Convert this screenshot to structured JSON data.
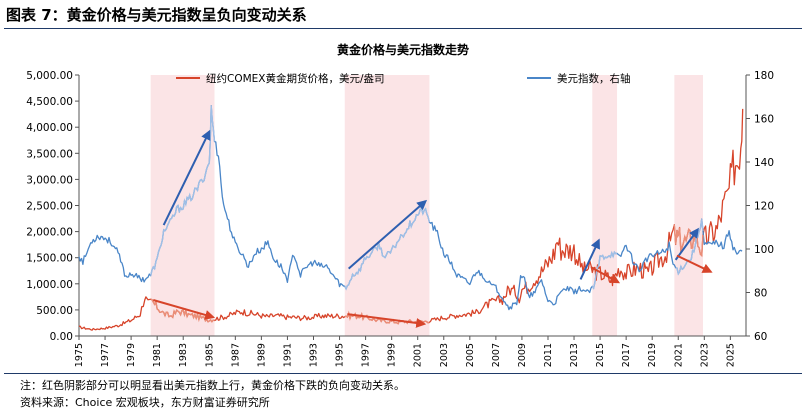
{
  "figure": {
    "title": "图表 7：黄金价格与美元指数呈负向变动关系",
    "note": "注：红色阴影部分可以明显看出美元指数上行，黄金价格下跌的负向变动关系。",
    "source": "资料来源：Choice 宏观板块，东方财富证券研究所"
  },
  "colors": {
    "gold": "#d7442a",
    "usd": "#4a86c8",
    "shade": "#fbe4e6",
    "arrow_red": "#d7442a",
    "arrow_blue": "#2e5fb0",
    "rule": "#1f3a68"
  },
  "chart_data": {
    "type": "line",
    "title": "黄金价格与美元指数走势",
    "x_tick_labels": [
      "1975",
      "1977",
      "1979",
      "1981",
      "1983",
      "1985",
      "1987",
      "1989",
      "1991",
      "1993",
      "1995",
      "1997",
      "1999",
      "2001",
      "2003",
      "2005",
      "2007",
      "2009",
      "2011",
      "2013",
      "2015",
      "2017",
      "2019",
      "2021",
      "2023",
      "2025"
    ],
    "xlim": [
      1975,
      2026.2
    ],
    "y_left": {
      "lim": [
        0,
        5000
      ],
      "ticks": [
        "0.00",
        "500.00",
        "1,000.00",
        "1,500.00",
        "2,000.00",
        "2,500.00",
        "3,000.00",
        "3,500.00",
        "4,000.00",
        "4,500.00",
        "5,000.00"
      ]
    },
    "y_right": {
      "lim": [
        60,
        180
      ],
      "ticks": [
        "60",
        "80",
        "100",
        "120",
        "140",
        "160",
        "180"
      ]
    },
    "shaded_periods": [
      [
        1980.5,
        1985.4
      ],
      [
        1995.4,
        2001.9
      ],
      [
        2014.4,
        2016.3
      ],
      [
        2020.7,
        2022.9
      ]
    ],
    "series": [
      {
        "name": "纽约COMEX黄金期货价格，美元/盎司",
        "axis": "left",
        "points": [
          [
            1975,
            170
          ],
          [
            1976,
            125
          ],
          [
            1977,
            150
          ],
          [
            1978,
            200
          ],
          [
            1979,
            300
          ],
          [
            1979.7,
            420
          ],
          [
            1980.05,
            750
          ],
          [
            1980.3,
            620
          ],
          [
            1980.6,
            660
          ],
          [
            1981,
            550
          ],
          [
            1981.5,
            430
          ],
          [
            1982,
            380
          ],
          [
            1982.6,
            470
          ],
          [
            1983,
            450
          ],
          [
            1983.5,
            400
          ],
          [
            1984,
            380
          ],
          [
            1984.5,
            340
          ],
          [
            1985,
            310
          ],
          [
            1985.5,
            330
          ],
          [
            1986,
            360
          ],
          [
            1986.5,
            390
          ],
          [
            1987,
            440
          ],
          [
            1987.5,
            470
          ],
          [
            1988,
            440
          ],
          [
            1988.5,
            420
          ],
          [
            1989,
            390
          ],
          [
            1989.5,
            370
          ],
          [
            1990,
            390
          ],
          [
            1990.5,
            380
          ],
          [
            1991,
            360
          ],
          [
            1991.5,
            360
          ],
          [
            1992,
            345
          ],
          [
            1992.5,
            350
          ],
          [
            1993,
            360
          ],
          [
            1993.5,
            385
          ],
          [
            1994,
            385
          ],
          [
            1994.5,
            385
          ],
          [
            1995,
            385
          ],
          [
            1995.5,
            385
          ],
          [
            1996,
            390
          ],
          [
            1996.5,
            385
          ],
          [
            1997,
            350
          ],
          [
            1997.5,
            330
          ],
          [
            1998,
            295
          ],
          [
            1998.5,
            290
          ],
          [
            1999,
            280
          ],
          [
            1999.5,
            265
          ],
          [
            2000,
            280
          ],
          [
            2000.5,
            275
          ],
          [
            2001,
            265
          ],
          [
            2001.5,
            275
          ],
          [
            2002,
            300
          ],
          [
            2002.5,
            320
          ],
          [
            2003,
            360
          ],
          [
            2003.5,
            370
          ],
          [
            2004,
            400
          ],
          [
            2004.5,
            410
          ],
          [
            2005,
            430
          ],
          [
            2005.5,
            450
          ],
          [
            2006,
            550
          ],
          [
            2006.5,
            620
          ],
          [
            2007,
            670
          ],
          [
            2007.5,
            700
          ],
          [
            2008,
            900
          ],
          [
            2008.5,
            850
          ],
          [
            2008.8,
            740
          ],
          [
            2009,
            900
          ],
          [
            2009.5,
            950
          ],
          [
            2010,
            1100
          ],
          [
            2010.5,
            1230
          ],
          [
            2011,
            1400
          ],
          [
            2011.5,
            1600
          ],
          [
            2011.7,
            1850
          ],
          [
            2012,
            1660
          ],
          [
            2012.5,
            1650
          ],
          [
            2013,
            1650
          ],
          [
            2013.4,
            1400
          ],
          [
            2013.8,
            1250
          ],
          [
            2014,
            1300
          ],
          [
            2014.5,
            1250
          ],
          [
            2015,
            1200
          ],
          [
            2015.5,
            1130
          ],
          [
            2015.9,
            1060
          ],
          [
            2016,
            1100
          ],
          [
            2016.5,
            1300
          ],
          [
            2017,
            1200
          ],
          [
            2017.5,
            1260
          ],
          [
            2018,
            1300
          ],
          [
            2018.7,
            1200
          ],
          [
            2019,
            1300
          ],
          [
            2019.5,
            1450
          ],
          [
            2020,
            1550
          ],
          [
            2020.6,
            1950
          ],
          [
            2020.9,
            1850
          ],
          [
            2021,
            1850
          ],
          [
            2021.5,
            1800
          ],
          [
            2022,
            1850
          ],
          [
            2022.3,
            1950
          ],
          [
            2022.8,
            1650
          ],
          [
            2023,
            1850
          ],
          [
            2023.5,
            1950
          ],
          [
            2024,
            2050
          ],
          [
            2024.3,
            2350
          ],
          [
            2024.8,
            2700
          ],
          [
            2025,
            2900
          ],
          [
            2025.3,
            3300
          ],
          [
            2025.6,
            3400
          ],
          [
            2025.8,
            3800
          ],
          [
            2025.95,
            4350
          ]
        ]
      },
      {
        "name": "美元指数，右轴",
        "axis": "right",
        "points": [
          [
            1975,
            97
          ],
          [
            1975.3,
            94
          ],
          [
            1976,
            104
          ],
          [
            1976.5,
            106
          ],
          [
            1977,
            105
          ],
          [
            1977.5,
            103
          ],
          [
            1978,
            98
          ],
          [
            1978.6,
            87
          ],
          [
            1979,
            89
          ],
          [
            1979.5,
            87
          ],
          [
            1980,
            86
          ],
          [
            1980.5,
            88
          ],
          [
            1981,
            95
          ],
          [
            1981.5,
            108
          ],
          [
            1982,
            112
          ],
          [
            1982.5,
            118
          ],
          [
            1983,
            120
          ],
          [
            1983.5,
            123
          ],
          [
            1984,
            127
          ],
          [
            1984.5,
            132
          ],
          [
            1985,
            140
          ],
          [
            1985.15,
            164
          ],
          [
            1985.4,
            150
          ],
          [
            1985.8,
            140
          ],
          [
            1986,
            123
          ],
          [
            1986.5,
            112
          ],
          [
            1987,
            102
          ],
          [
            1987.5,
            98
          ],
          [
            1988,
            92
          ],
          [
            1988.5,
            98
          ],
          [
            1989,
            100
          ],
          [
            1989.5,
            103
          ],
          [
            1990,
            95
          ],
          [
            1990.5,
            92
          ],
          [
            1991,
            86
          ],
          [
            1991.5,
            98
          ],
          [
            1992,
            88
          ],
          [
            1992.5,
            92
          ],
          [
            1993,
            94
          ],
          [
            1993.5,
            92
          ],
          [
            1994,
            92
          ],
          [
            1994.5,
            88
          ],
          [
            1995,
            84
          ],
          [
            1995.5,
            82
          ],
          [
            1996,
            88
          ],
          [
            1996.5,
            90
          ],
          [
            1997,
            96
          ],
          [
            1997.5,
            98
          ],
          [
            1998,
            102
          ],
          [
            1998.5,
            96
          ],
          [
            1999,
            99
          ],
          [
            1999.5,
            104
          ],
          [
            2000,
            108
          ],
          [
            2000.5,
            112
          ],
          [
            2001,
            116
          ],
          [
            2001.5,
            118
          ],
          [
            2002,
            112
          ],
          [
            2002.5,
            107
          ],
          [
            2003,
            98
          ],
          [
            2003.5,
            94
          ],
          [
            2004,
            88
          ],
          [
            2004.5,
            86
          ],
          [
            2005,
            84
          ],
          [
            2005.5,
            90
          ],
          [
            2006,
            88
          ],
          [
            2006.5,
            84
          ],
          [
            2007,
            82
          ],
          [
            2007.5,
            78
          ],
          [
            2008,
            73
          ],
          [
            2008.6,
            75
          ],
          [
            2008.9,
            88
          ],
          [
            2009.2,
            86
          ],
          [
            2009.5,
            78
          ],
          [
            2010,
            80
          ],
          [
            2010.5,
            86
          ],
          [
            2011,
            76
          ],
          [
            2011.5,
            75
          ],
          [
            2012,
            80
          ],
          [
            2012.5,
            82
          ],
          [
            2013,
            80
          ],
          [
            2013.5,
            82
          ],
          [
            2014,
            80
          ],
          [
            2014.5,
            82
          ],
          [
            2015,
            96
          ],
          [
            2015.5,
            97
          ],
          [
            2016,
            98
          ],
          [
            2016.5,
            96
          ],
          [
            2017,
            102
          ],
          [
            2017.5,
            95
          ],
          [
            2018,
            90
          ],
          [
            2018.5,
            95
          ],
          [
            2019,
            97
          ],
          [
            2019.5,
            98
          ],
          [
            2020,
            99
          ],
          [
            2020.3,
            102
          ],
          [
            2020.6,
            93
          ],
          [
            2021,
            90
          ],
          [
            2021.5,
            93
          ],
          [
            2022,
            96
          ],
          [
            2022.5,
            106
          ],
          [
            2022.8,
            114
          ],
          [
            2023,
            102
          ],
          [
            2023.5,
            102
          ],
          [
            2024,
            103
          ],
          [
            2024.5,
            101
          ],
          [
            2024.9,
            109
          ],
          [
            2025.2,
            101
          ],
          [
            2025.5,
            98
          ],
          [
            2025.9,
            99
          ]
        ]
      }
    ],
    "highlight_ranges": [
      {
        "series": 0,
        "range": [
          1980.5,
          1985.4
        ]
      },
      {
        "series": 0,
        "range": [
          1995.4,
          2001.9
        ]
      },
      {
        "series": 0,
        "range": [
          2020.7,
          2022.9
        ]
      },
      {
        "series": 1,
        "range": [
          1980.5,
          1985.4
        ]
      },
      {
        "series": 1,
        "range": [
          1995.4,
          2001.9
        ]
      },
      {
        "series": 1,
        "range": [
          2014.4,
          2016.3
        ]
      },
      {
        "series": 1,
        "range": [
          2020.7,
          2022.9
        ]
      }
    ],
    "arrows": [
      {
        "color": "blue",
        "axis": "right",
        "from": [
          1981.5,
          111
        ],
        "to": [
          1985.0,
          154
        ]
      },
      {
        "color": "blue",
        "axis": "right",
        "from": [
          1995.7,
          91
        ],
        "to": [
          2001.6,
          122
        ]
      },
      {
        "color": "blue",
        "axis": "right",
        "from": [
          2013.5,
          86
        ],
        "to": [
          2014.9,
          104
        ]
      },
      {
        "color": "blue",
        "axis": "right",
        "from": [
          2020.8,
          95
        ],
        "to": [
          2022.5,
          109
        ]
      },
      {
        "color": "red",
        "axis": "left",
        "from": [
          1980.7,
          690
        ],
        "to": [
          1985.3,
          360
        ]
      },
      {
        "color": "red",
        "axis": "left",
        "from": [
          1995.6,
          420
        ],
        "to": [
          2001.5,
          230
        ]
      },
      {
        "color": "red",
        "axis": "left",
        "from": [
          2014.3,
          1320
        ],
        "to": [
          2016.4,
          1030
        ]
      },
      {
        "color": "red",
        "axis": "left",
        "from": [
          2020.9,
          1540
        ],
        "to": [
          2023.5,
          1230
        ]
      }
    ]
  }
}
